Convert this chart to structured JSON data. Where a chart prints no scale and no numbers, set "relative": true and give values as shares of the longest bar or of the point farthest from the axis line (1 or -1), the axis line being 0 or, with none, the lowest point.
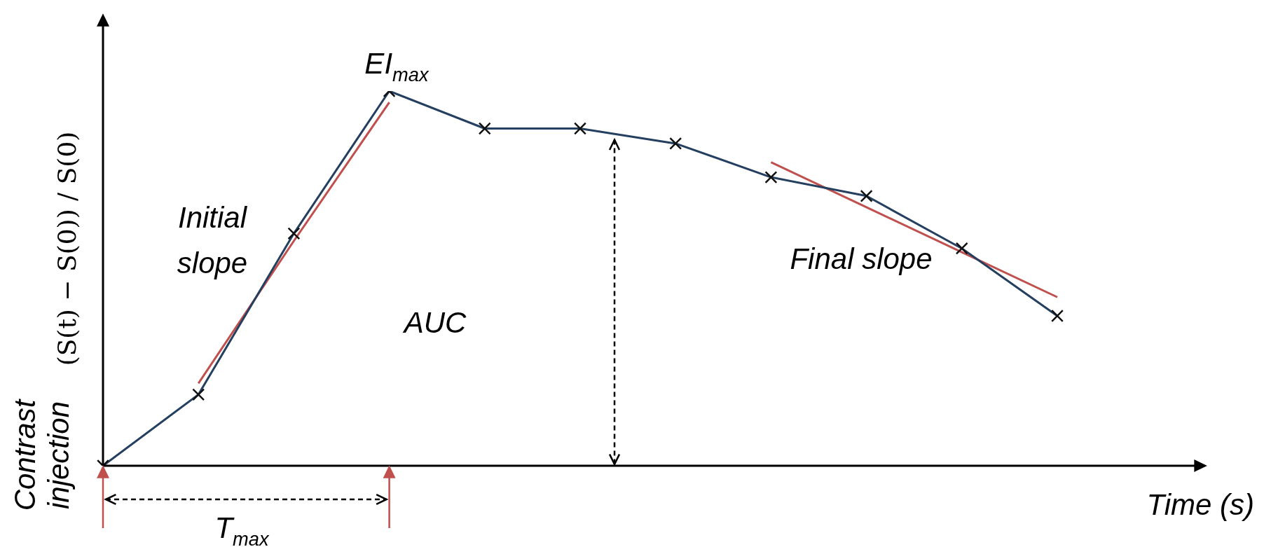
{
  "chart_data": {
    "type": "line",
    "relative": true,
    "xlabel": "Time (s)",
    "ylabel": "(S(t) − S(0)) / S(0)",
    "marker": "cross",
    "categories": [
      null,
      null,
      null,
      null,
      null,
      null,
      null,
      null,
      null,
      null,
      null
    ],
    "series": [
      {
        "color": "#243f60",
        "values": [
          0,
          0.19,
          0.62,
          1,
          0.9,
          0.9,
          0.86,
          0.77,
          0.72,
          0.58,
          0.4
        ]
      },
      {
        "color": "#c0504d",
        "marker": "none",
        "values": [
          null,
          0.22,
          0.6,
          0.97,
          null,
          null,
          null,
          null,
          null,
          null,
          null
        ]
      },
      {
        "color": "#c0504d",
        "marker": "none",
        "values": [
          null,
          null,
          null,
          null,
          null,
          null,
          null,
          0.81,
          0.69,
          0.57,
          0.45
        ]
      }
    ],
    "annotations": [
      "EI$_{max}$",
      "Initial slope",
      "AUC",
      "Final slope",
      "T$_{max}$",
      "Contrast injection"
    ]
  }
}
